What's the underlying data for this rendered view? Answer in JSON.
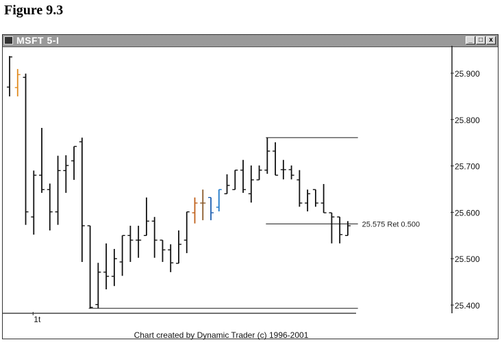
{
  "figure_label": "Figure 9.3",
  "window": {
    "title": "MSFT 5-I",
    "buttons": [
      {
        "name": "minimize",
        "glyph": "_"
      },
      {
        "name": "maximize",
        "glyph": "□"
      },
      {
        "name": "close",
        "glyph": "x"
      }
    ]
  },
  "footer": "Chart created by Dynamic Trader (c) 1996-2001",
  "chart_data": {
    "type": "ohlc-bar",
    "title": "",
    "ylim": [
      25.38,
      25.96
    ],
    "y_ticks": [
      "25.900",
      "25.800",
      "25.700",
      "25.600",
      "25.500",
      "25.400"
    ],
    "y_tick_values": [
      25.9,
      25.8,
      25.7,
      25.6,
      25.5,
      25.4
    ],
    "x_tick_labels": [
      {
        "bar": 3,
        "label": "1t"
      }
    ],
    "bar_color_default": "#111111",
    "bars": [
      {
        "o": 25.87,
        "h": 25.937,
        "l": 25.85,
        "c": 25.935
      },
      {
        "o": 25.869,
        "h": 25.909,
        "l": 25.85,
        "c": 25.897,
        "color": "#e08a1e"
      },
      {
        "o": 25.891,
        "h": 25.899,
        "l": 25.573,
        "c": 25.601
      },
      {
        "o": 25.59,
        "h": 25.69,
        "l": 25.552,
        "c": 25.68
      },
      {
        "o": 25.68,
        "h": 25.782,
        "l": 25.642,
        "c": 25.649
      },
      {
        "o": 25.649,
        "h": 25.662,
        "l": 25.561,
        "c": 25.601
      },
      {
        "o": 25.601,
        "h": 25.722,
        "l": 25.573,
        "c": 25.69
      },
      {
        "o": 25.69,
        "h": 25.723,
        "l": 25.642,
        "c": 25.701
      },
      {
        "o": 25.711,
        "h": 25.742,
        "l": 25.67,
        "c": 25.742
      },
      {
        "o": 25.752,
        "h": 25.761,
        "l": 25.493,
        "c": 25.571
      },
      {
        "o": 25.571,
        "h": 25.571,
        "l": 25.393,
        "c": 25.395
      },
      {
        "o": 25.401,
        "h": 25.491,
        "l": 25.393,
        "c": 25.471
      },
      {
        "o": 25.471,
        "h": 25.533,
        "l": 25.434,
        "c": 25.462
      },
      {
        "o": 25.462,
        "h": 25.521,
        "l": 25.441,
        "c": 25.5
      },
      {
        "o": 25.493,
        "h": 25.55,
        "l": 25.463,
        "c": 25.55
      },
      {
        "o": 25.55,
        "h": 25.571,
        "l": 25.493,
        "c": 25.54
      },
      {
        "o": 25.54,
        "h": 25.571,
        "l": 25.502,
        "c": 25.54
      },
      {
        "o": 25.55,
        "h": 25.632,
        "l": 25.55,
        "c": 25.581
      },
      {
        "o": 25.581,
        "h": 25.59,
        "l": 25.502,
        "c": 25.54
      },
      {
        "o": 25.54,
        "h": 25.54,
        "l": 25.493,
        "c": 25.519
      },
      {
        "o": 25.519,
        "h": 25.531,
        "l": 25.471,
        "c": 25.491
      },
      {
        "o": 25.49,
        "h": 25.561,
        "l": 25.49,
        "c": 25.531
      },
      {
        "o": 25.54,
        "h": 25.601,
        "l": 25.512,
        "c": 25.601
      },
      {
        "o": 25.599,
        "h": 25.632,
        "l": 25.576,
        "c": 25.62,
        "color": "#c0601a"
      },
      {
        "o": 25.62,
        "h": 25.649,
        "l": 25.583,
        "c": 25.62,
        "color": "#8a5a2a"
      },
      {
        "o": 25.632,
        "h": 25.632,
        "l": 25.583,
        "c": 25.599,
        "color": "#1e5fb0"
      },
      {
        "o": 25.611,
        "h": 25.649,
        "l": 25.602,
        "c": 25.649,
        "color": "#1e78c8"
      },
      {
        "o": 25.64,
        "h": 25.682,
        "l": 25.64,
        "c": 25.658
      },
      {
        "o": 25.649,
        "h": 25.691,
        "l": 25.649,
        "c": 25.691
      },
      {
        "o": 25.691,
        "h": 25.713,
        "l": 25.642,
        "c": 25.649
      },
      {
        "o": 25.64,
        "h": 25.701,
        "l": 25.621,
        "c": 25.67
      },
      {
        "o": 25.67,
        "h": 25.701,
        "l": 25.67,
        "c": 25.691
      },
      {
        "o": 25.691,
        "h": 25.761,
        "l": 25.683,
        "c": 25.732
      },
      {
        "o": 25.732,
        "h": 25.751,
        "l": 25.68,
        "c": 25.68
      },
      {
        "o": 25.692,
        "h": 25.713,
        "l": 25.671,
        "c": 25.692
      },
      {
        "o": 25.692,
        "h": 25.701,
        "l": 25.671,
        "c": 25.68
      },
      {
        "o": 25.67,
        "h": 25.691,
        "l": 25.612,
        "c": 25.62
      },
      {
        "o": 25.62,
        "h": 25.649,
        "l": 25.602,
        "c": 25.64
      },
      {
        "o": 25.649,
        "h": 25.649,
        "l": 25.612,
        "c": 25.62
      },
      {
        "o": 25.62,
        "h": 25.661,
        "l": 25.599,
        "c": 25.599
      },
      {
        "o": 25.599,
        "h": 25.599,
        "l": 25.533,
        "c": 25.59
      },
      {
        "o": 25.59,
        "h": 25.59,
        "l": 25.533,
        "c": 25.552
      },
      {
        "o": 25.55,
        "h": 25.581,
        "l": 25.55,
        "c": 25.571
      }
    ],
    "annotations": [
      {
        "kind": "swing-high-line",
        "price": 25.761,
        "from_bar": 32,
        "to_bar": 43
      },
      {
        "kind": "swing-low-line",
        "price": 25.393,
        "from_bar": 10,
        "to_bar": 43
      },
      {
        "kind": "retracement-line",
        "price": 25.575,
        "from_bar": 32,
        "to_bar": 43,
        "label": "25.575 Ret 0.500"
      }
    ]
  }
}
